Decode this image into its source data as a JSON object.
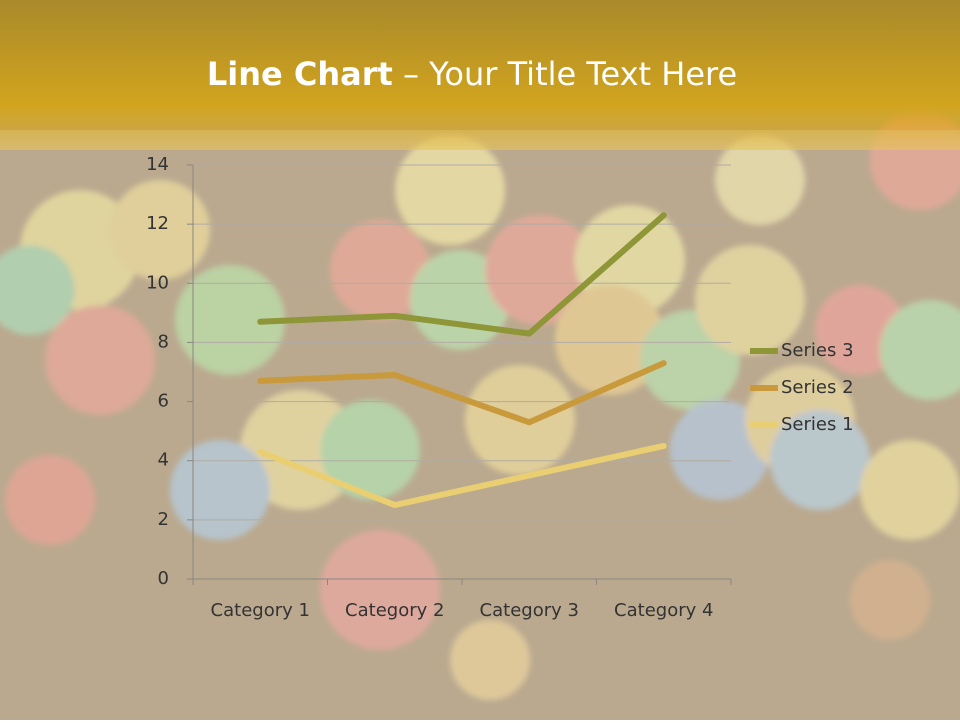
{
  "chart_data": {
    "type": "line",
    "title": [
      "Line Chart",
      "– Your Title Text Here"
    ],
    "categories": [
      "Category 1",
      "Category 2",
      "Category 3",
      "Category 4"
    ],
    "series": [
      {
        "name": "Series 1",
        "color": "#e9cf72",
        "values": [
          4.3,
          2.5,
          3.5,
          4.5
        ]
      },
      {
        "name": "Series 2",
        "color": "#c99a3c",
        "values": [
          6.7,
          6.9,
          5.3,
          7.3
        ]
      },
      {
        "name": "Series 3",
        "color": "#8e9637",
        "values": [
          8.7,
          8.9,
          8.3,
          12.3
        ]
      }
    ],
    "ylim": [
      0,
      14
    ],
    "yticks": [
      0,
      2,
      4,
      6,
      8,
      10,
      12,
      14
    ],
    "grid": true,
    "legend": "right"
  }
}
